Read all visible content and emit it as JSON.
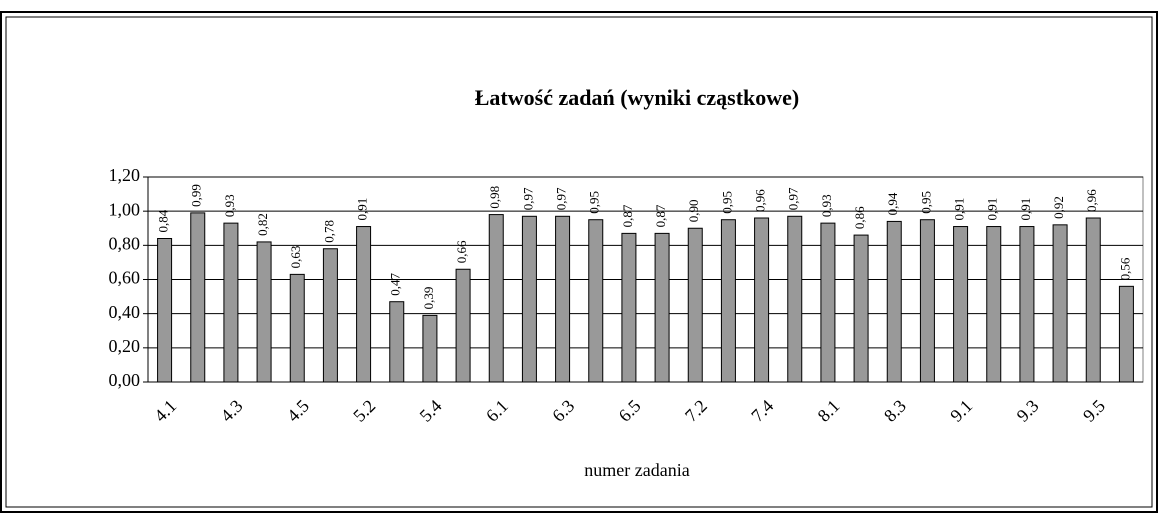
{
  "chart_data": {
    "type": "bar",
    "title": "Łatwość zadań (wyniki cząstkowe)",
    "x_label": "numer zadania",
    "categories": [
      "4.1",
      null,
      "4.3",
      null,
      "4.5",
      null,
      "5.2",
      null,
      "5.4",
      null,
      "6.1",
      null,
      "6.3",
      null,
      "6.5",
      null,
      "7.2",
      null,
      "7.4",
      null,
      "8.1",
      null,
      "8.3",
      null,
      "9.1",
      null,
      "9.3",
      null,
      "9.5",
      null
    ],
    "values": [
      0.84,
      0.99,
      0.93,
      0.82,
      0.63,
      0.78,
      0.91,
      0.47,
      0.39,
      0.66,
      0.98,
      0.97,
      0.97,
      0.95,
      0.87,
      0.87,
      0.9,
      0.95,
      0.96,
      0.97,
      0.93,
      0.86,
      0.94,
      0.95,
      0.91,
      0.91,
      0.91,
      0.92,
      0.96,
      0.56
    ],
    "value_labels": [
      "0,84",
      "0,99",
      "0,93",
      "0,82",
      "0,63",
      "0,78",
      "0,91",
      "0,47",
      "0,39",
      "0,66",
      "0,98",
      "0,97",
      "0,97",
      "0,95",
      "0,87",
      "0,87",
      "0,90",
      "0,95",
      "0,96",
      "0,97",
      "0,93",
      "0,86",
      "0,94",
      "0,95",
      "0,91",
      "0,91",
      "0,91",
      "0,92",
      "0,96",
      "0,56"
    ],
    "color": "#999999",
    "ylim": [
      0,
      1.2
    ],
    "yticks": [
      {
        "value": 0,
        "label": "0,00"
      },
      {
        "value": 0.2,
        "label": "0,20"
      },
      {
        "value": 0.4,
        "label": "0,40"
      },
      {
        "value": 0.6,
        "label": "0,60"
      },
      {
        "value": 0.8,
        "label": "0,80"
      },
      {
        "value": 1.0,
        "label": "1,00"
      },
      {
        "value": 1.2,
        "label": "1,20"
      }
    ],
    "grid": true
  }
}
